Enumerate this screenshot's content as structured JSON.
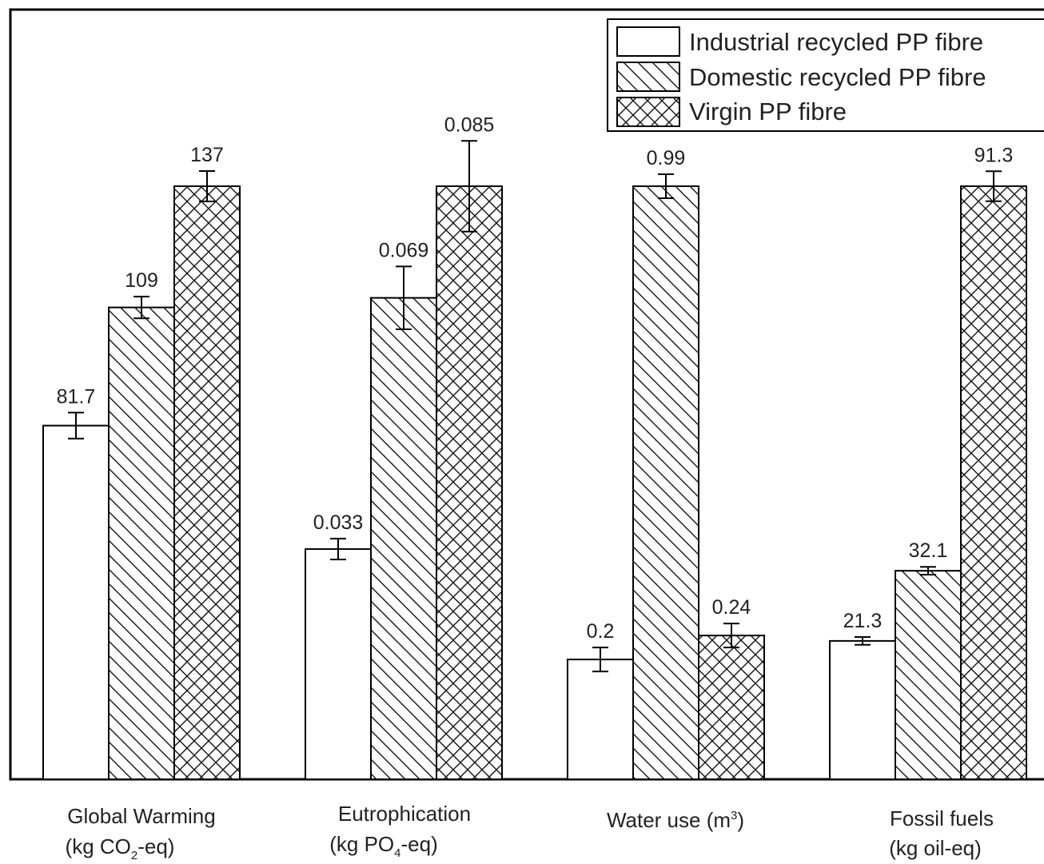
{
  "chart_data": {
    "type": "bar",
    "title": "",
    "xlabel": "",
    "ylabel": "",
    "grid": false,
    "legend_position": "top-right",
    "note": "Each category is drawn on its own relative scale (tallest bar in each group reaches the same height); error bars show uncertainty.",
    "categories": [
      {
        "id": "gw",
        "line1": "Global Warming",
        "line2_pre": "(kg CO",
        "line2_sub": "2",
        "line2_post": "-eq)"
      },
      {
        "id": "eu",
        "line1": "Eutrophication",
        "line2_pre": "(kg PO",
        "line2_sub": "4",
        "line2_post": "-eq)"
      },
      {
        "id": "wu",
        "line1_pre": "Water use (m",
        "line1_sup": "3",
        "line1_post": ")"
      },
      {
        "id": "ff",
        "line1": "Fossil fuels",
        "line2": "(kg oil-eq)"
      }
    ],
    "series": [
      {
        "name": "Industrial recycled PP fibre",
        "pattern": "none",
        "values": [
          81.7,
          0.033,
          0.2,
          21.3
        ],
        "labels": [
          "81.7",
          "0.033",
          "0.2",
          "21.3"
        ],
        "errors": [
          3.0,
          0.0015,
          0.02,
          0.6
        ]
      },
      {
        "name": "Domestic recycled PP fibre",
        "pattern": "diagonal",
        "values": [
          109,
          0.069,
          0.99,
          32.1
        ],
        "labels": [
          "109",
          "0.069",
          "0.99",
          "32.1"
        ],
        "errors": [
          2.5,
          0.0045,
          0.02,
          0.6
        ]
      },
      {
        "name": "Virgin PP fibre",
        "pattern": "crosshatch",
        "values": [
          137,
          0.085,
          0.24,
          91.3
        ],
        "labels": [
          "137",
          "0.085",
          "0.24",
          "91.3"
        ],
        "errors": [
          3.5,
          0.0065,
          0.02,
          2.3
        ]
      }
    ]
  }
}
